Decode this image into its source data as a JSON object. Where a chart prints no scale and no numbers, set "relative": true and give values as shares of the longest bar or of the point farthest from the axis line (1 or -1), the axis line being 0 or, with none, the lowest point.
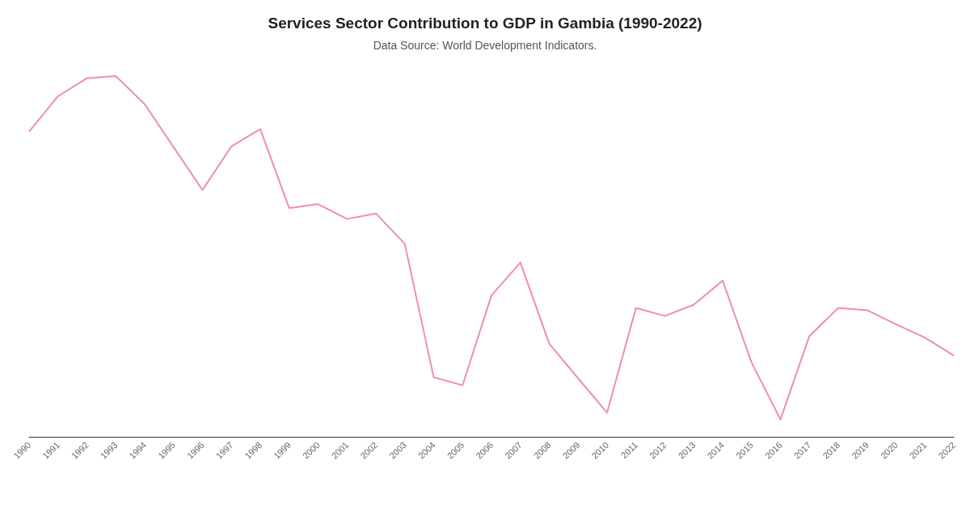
{
  "chart_data": {
    "type": "line",
    "title": "Services Sector Contribution to GDP in Gambia (1990-2022)",
    "subtitle": "Data Source: World Development Indicators.",
    "relative": true,
    "categories": [
      "1990",
      "1991",
      "1992",
      "1993",
      "1994",
      "1995",
      "1996",
      "1997",
      "1998",
      "1999",
      "2000",
      "2001",
      "2002",
      "2003",
      "2004",
      "2005",
      "2006",
      "2007",
      "2008",
      "2009",
      "2010",
      "2011",
      "2012",
      "2013",
      "2014",
      "2015",
      "2016",
      "2017",
      "2018",
      "2019",
      "2020",
      "2021",
      "2022"
    ],
    "series": [
      {
        "color": "#f08cb4",
        "values": [
          0.846,
          0.944,
          0.994,
          1,
          0.922,
          0.803,
          0.684,
          0.805,
          0.853,
          0.634,
          0.645,
          0.604,
          0.619,
          0.535,
          0.165,
          0.143,
          0.392,
          0.483,
          0.258,
          0.162,
          0.067,
          0.357,
          0.335,
          0.366,
          0.433,
          0.206,
          0.048,
          0.279,
          0.357,
          0.351,
          0.312,
          0.275,
          0.225
        ]
      }
    ],
    "grid": false,
    "marker": "none"
  }
}
